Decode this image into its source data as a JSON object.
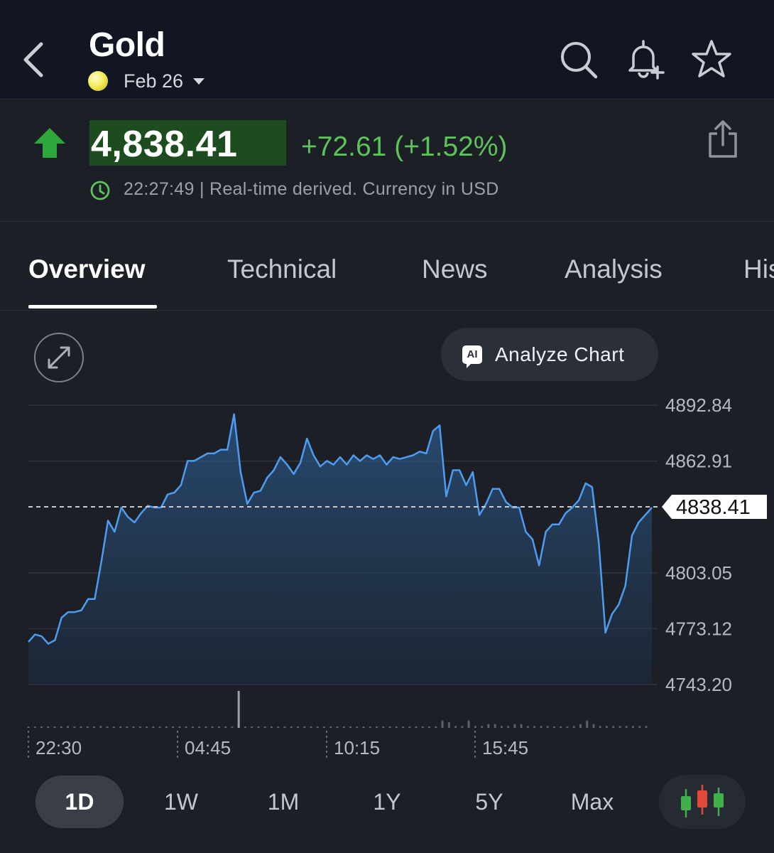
{
  "header": {
    "title": "Gold",
    "contract": "Feb 26",
    "icons": [
      "back-icon",
      "search-icon",
      "bell-plus-icon",
      "star-icon"
    ]
  },
  "quote": {
    "price": "4,838.41",
    "change": "+72.61 (+1.52%)",
    "time_note": "22:27:49 | Real-time derived. Currency in USD",
    "direction": "up",
    "colors": {
      "up": "#5cc25a",
      "price_bg": "#1d4d1f"
    }
  },
  "tabs": [
    {
      "label": "Overview",
      "active": true
    },
    {
      "label": "Technical"
    },
    {
      "label": "News"
    },
    {
      "label": "Analysis"
    },
    {
      "label": "His"
    }
  ],
  "chart_controls": {
    "analyze_label": "Analyze Chart",
    "ai_badge": "AI"
  },
  "chart_data": {
    "type": "area",
    "y_ticks": [
      "4892.84",
      "4862.91",
      "4803.05",
      "4773.12",
      "4743.20"
    ],
    "ylim": [
      4743.2,
      4892.84
    ],
    "current_value": "4838.41",
    "x_ticks": [
      "22:30",
      "04:45",
      "10:15",
      "15:45"
    ],
    "line_color": "#4d9cf0",
    "series": [
      {
        "values": [
          4766,
          4770,
          4769,
          4765,
          4767,
          4779,
          4782,
          4782,
          4783,
          4789,
          4789,
          4809,
          4831,
          4825,
          4838,
          4833,
          4830,
          4835,
          4839,
          4838,
          4838,
          4845,
          4846,
          4850,
          4863,
          4863,
          4865,
          4867,
          4867,
          4869,
          4869,
          4888,
          4857,
          4840,
          4846,
          4847,
          4854,
          4858,
          4865,
          4861,
          4856,
          4862,
          4875,
          4866,
          4860,
          4863,
          4861,
          4865,
          4861,
          4866,
          4863,
          4866,
          4864,
          4866,
          4861,
          4865,
          4864,
          4865,
          4866,
          4868,
          4867,
          4879,
          4882,
          4844,
          4858,
          4858,
          4850,
          4857,
          4834,
          4840,
          4848,
          4848,
          4841,
          4838,
          4838,
          4825,
          4821,
          4807,
          4825,
          4829,
          4829,
          4835,
          4838,
          4842,
          4851,
          4849,
          4819,
          4771,
          4781,
          4786,
          4796,
          4823,
          4830,
          4834,
          4838
        ]
      }
    ],
    "volume": [
      0,
      0,
      0,
      0,
      0,
      0,
      1,
      0,
      0,
      0,
      0,
      1,
      0,
      0,
      0,
      0,
      0,
      0,
      0,
      0,
      0,
      0,
      0,
      0,
      0,
      0,
      0,
      0,
      0,
      0,
      0,
      0,
      20,
      0,
      0,
      0,
      0,
      0,
      0,
      0,
      0,
      0,
      0,
      0,
      0,
      0,
      0,
      0,
      0,
      0,
      0,
      0,
      0,
      0,
      0,
      0,
      0,
      0,
      0,
      0,
      0,
      0,
      0,
      4,
      3,
      1,
      1,
      4,
      1,
      1,
      2,
      2,
      1,
      1,
      2,
      2,
      1,
      1,
      1,
      1,
      0,
      0,
      0,
      1,
      2,
      4,
      2,
      1,
      1,
      1,
      1,
      1,
      1,
      1,
      1
    ],
    "grid": true
  },
  "ranges": [
    {
      "label": "1D",
      "active": true
    },
    {
      "label": "1W"
    },
    {
      "label": "1M"
    },
    {
      "label": "1Y"
    },
    {
      "label": "5Y"
    },
    {
      "label": "Max"
    }
  ]
}
